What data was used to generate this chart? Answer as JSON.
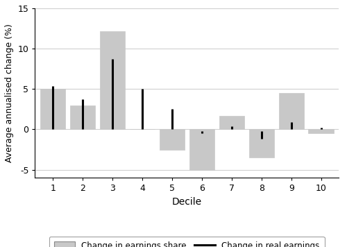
{
  "deciles": [
    1,
    2,
    3,
    4,
    5,
    6,
    7,
    8,
    9,
    10
  ],
  "bar_values": [
    5.0,
    3.0,
    12.2,
    0.0,
    -2.5,
    -5.0,
    1.7,
    -3.5,
    4.5,
    -0.5
  ],
  "line_top": [
    5.4,
    3.7,
    8.7,
    5.0,
    2.5,
    -0.2,
    0.4,
    -0.2,
    0.9,
    0.2
  ],
  "line_bottom": [
    0.0,
    0.0,
    0.0,
    0.0,
    0.0,
    -0.5,
    0.0,
    -1.2,
    0.0,
    0.0
  ],
  "bar_color": "#c8c8c8",
  "bar_edgecolor": "#c8c8c8",
  "line_color": "#000000",
  "line_width": 2.2,
  "ylabel": "Average annualised change (%)",
  "xlabel": "Decile",
  "ylim": [
    -6,
    15
  ],
  "yticks": [
    -5,
    0,
    5,
    10,
    15
  ],
  "grid_color": "#d0d0d0",
  "background_color": "#ffffff",
  "legend_bar_label": "Change in earnings share",
  "legend_line_label": "Change in real earnings",
  "bar_width": 0.85
}
